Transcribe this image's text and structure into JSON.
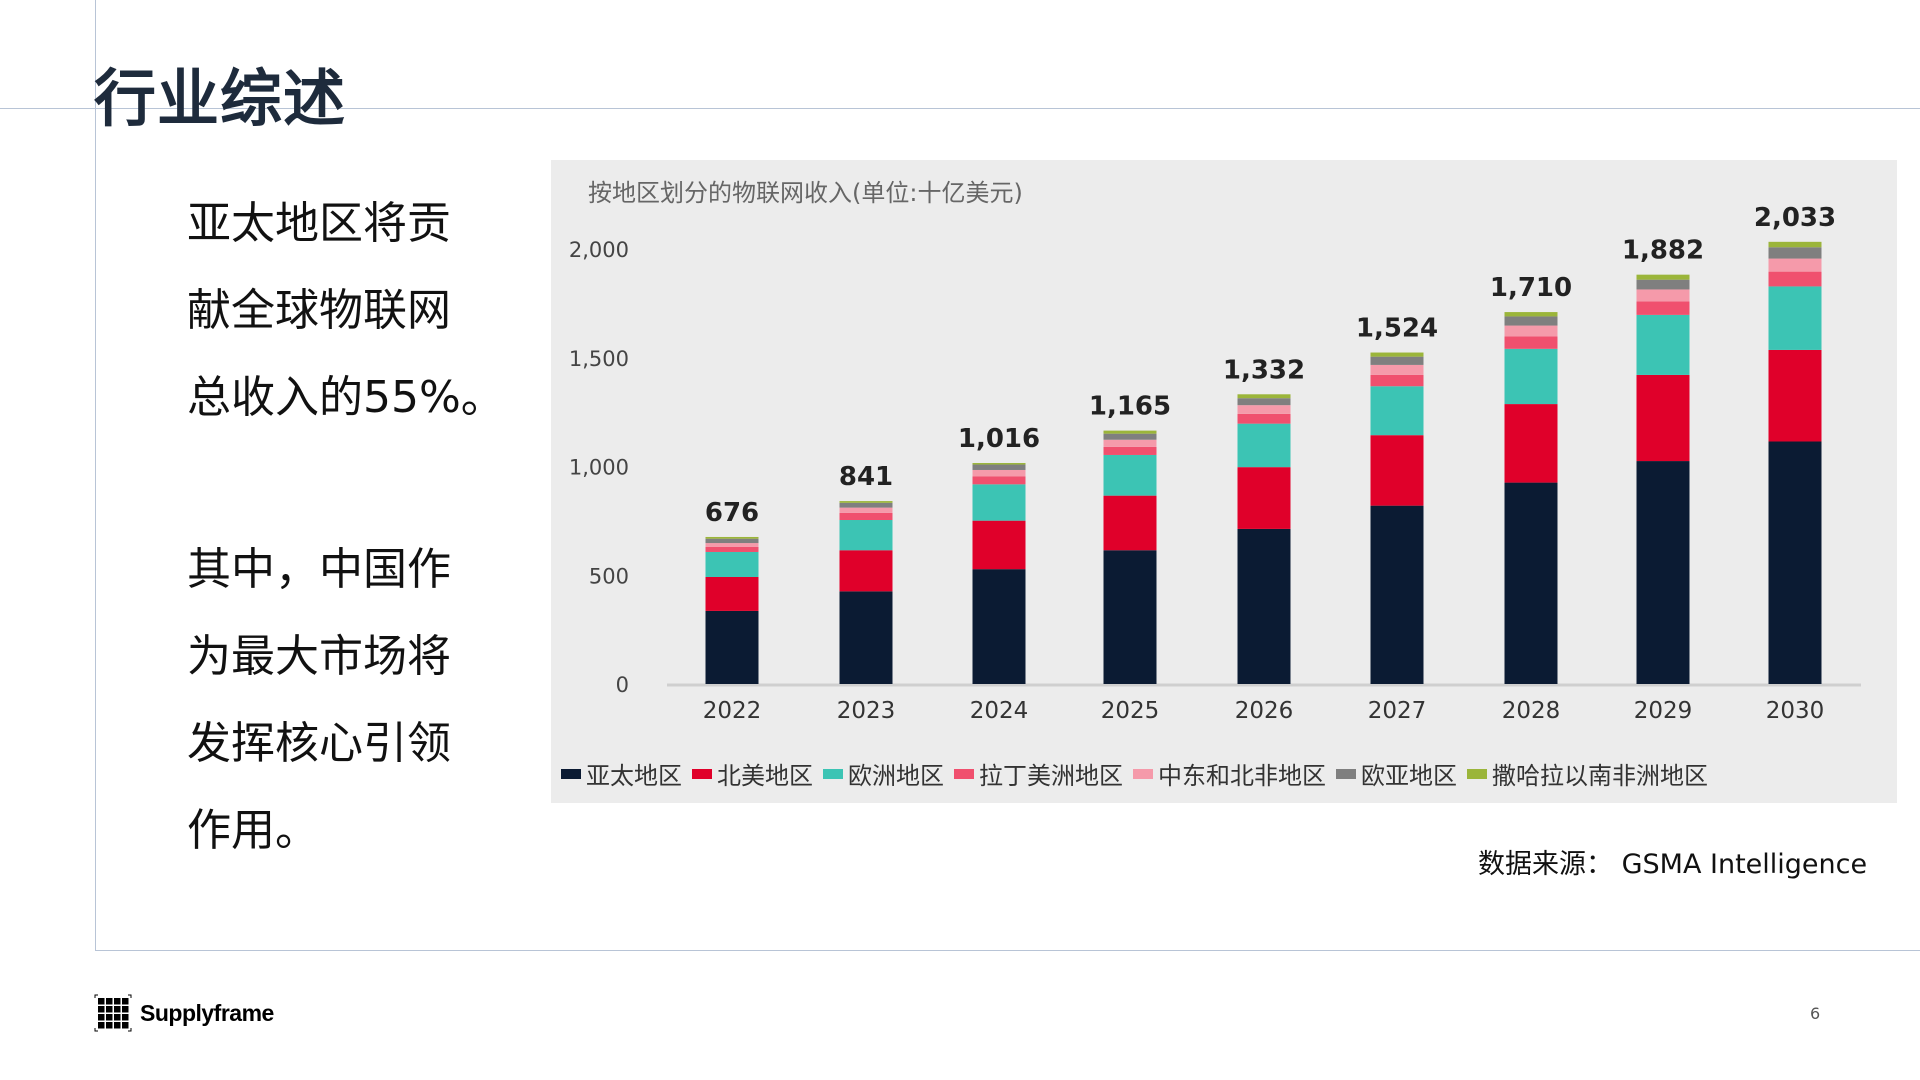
{
  "title": "行业综述",
  "paragraph1": [
    "亚太地区将贡",
    "献全球物联网",
    "总收入的55%。"
  ],
  "paragraph2": [
    "其中，中国作",
    "为最大市场将",
    "发挥核心引领",
    "作用。"
  ],
  "source": "数据来源：  GSMA Intelligence",
  "logo_text": "Supplyframe",
  "page_number": "6",
  "chart_data": {
    "type": "bar",
    "stacked": true,
    "title": "按地区划分的物联网收入(单位:十亿美元)",
    "categories": [
      "2022",
      "2023",
      "2024",
      "2025",
      "2026",
      "2027",
      "2028",
      "2029",
      "2030"
    ],
    "totals": [
      676,
      841,
      1016,
      1165,
      1332,
      1524,
      1710,
      1882,
      2033
    ],
    "total_labels": [
      "676",
      "841",
      "1,016",
      "1,165",
      "1,332",
      "1,524",
      "1,710",
      "1,882",
      "2,033"
    ],
    "ylim": [
      0,
      2000
    ],
    "yticks": [
      0,
      500,
      1000,
      1500,
      2000
    ],
    "ytick_labels": [
      "0",
      "500",
      "1,000",
      "1,500",
      "2,000"
    ],
    "grid": false,
    "legend_position": "bottom",
    "series": [
      {
        "name": "亚太地区",
        "color": "#0b1b33",
        "values": [
          336,
          426,
          528,
          615,
          713,
          820,
          926,
          1025,
          1115
        ]
      },
      {
        "name": "北美地区",
        "color": "#e0002a",
        "values": [
          156,
          189,
          223,
          251,
          284,
          324,
          361,
          396,
          421
        ]
      },
      {
        "name": "欧洲地区",
        "color": "#3cc4b4",
        "values": [
          115,
          139,
          167,
          187,
          200,
          225,
          254,
          276,
          292
        ]
      },
      {
        "name": "拉丁美洲地区",
        "color": "#f0506e",
        "values": [
          24,
          33,
          36,
          37,
          45,
          52,
          57,
          62,
          68
        ]
      },
      {
        "name": "中东和北非地区",
        "color": "#f59aaa",
        "values": [
          17,
          24,
          30,
          33,
          40,
          46,
          50,
          55,
          60
        ]
      },
      {
        "name": "欧亚地区",
        "color": "#7f7f7f",
        "values": [
          20,
          22,
          25,
          28,
          32,
          38,
          42,
          45,
          52
        ]
      },
      {
        "name": "撒哈拉以南非洲地区",
        "color": "#9bb53a",
        "values": [
          8,
          8,
          7,
          14,
          18,
          19,
          20,
          23,
          25
        ]
      }
    ]
  }
}
